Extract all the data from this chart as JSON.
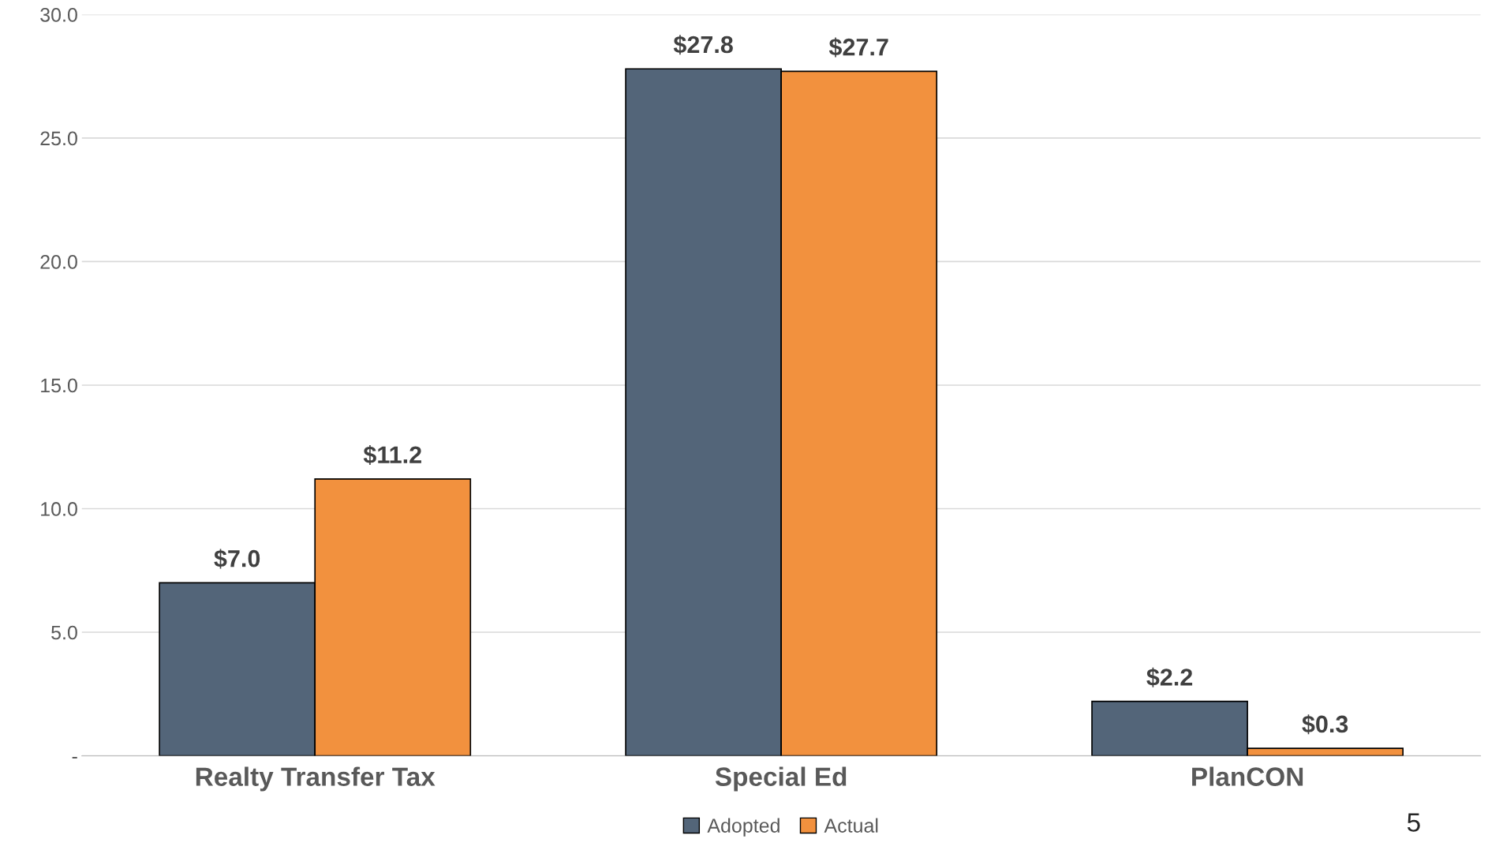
{
  "chart_data": {
    "type": "bar",
    "categories": [
      "Realty Transfer Tax",
      "Special Ed",
      "PlanCON"
    ],
    "series": [
      {
        "name": "Adopted",
        "color": "#536579",
        "values": [
          7.0,
          27.8,
          2.2
        ],
        "value_labels": [
          "$7.0",
          "$27.8",
          "$2.2"
        ]
      },
      {
        "name": "Actual",
        "color": "#f2913e",
        "values": [
          11.2,
          27.7,
          0.3
        ],
        "value_labels": [
          "$11.2",
          "$27.7",
          "$0.3"
        ]
      }
    ],
    "ylim": [
      0,
      30
    ],
    "yticks": [
      {
        "value": 0,
        "label": "-"
      },
      {
        "value": 5,
        "label": "5.0"
      },
      {
        "value": 10,
        "label": "10.0"
      },
      {
        "value": 15,
        "label": "15.0"
      },
      {
        "value": 20,
        "label": "20.0"
      },
      {
        "value": 25,
        "label": "25.0"
      },
      {
        "value": 30,
        "label": "30.0"
      }
    ],
    "grid": "y",
    "legend": "bottom",
    "annotations": [
      "5"
    ]
  }
}
